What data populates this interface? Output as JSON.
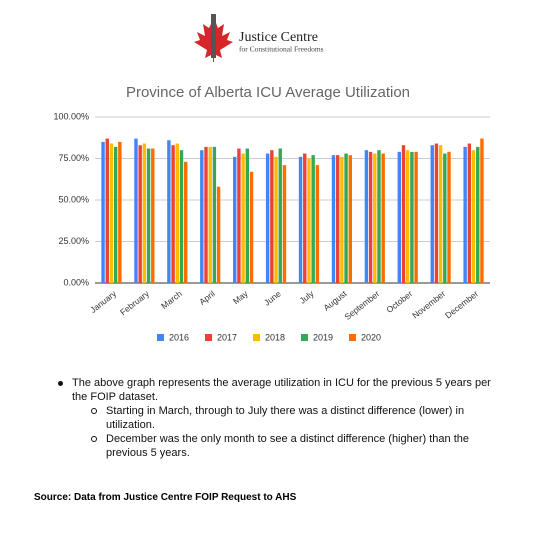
{
  "header": {
    "logo_name": "Justice Centre",
    "logo_subtitle": "for Constitutional Freedoms"
  },
  "chart_data": {
    "type": "bar",
    "title": "Province of Alberta ICU Average Utilization",
    "categories": [
      "January",
      "February",
      "March",
      "April",
      "May",
      "June",
      "July",
      "August",
      "September",
      "October",
      "November",
      "December"
    ],
    "series": [
      {
        "name": "2016",
        "color": "#4285f4",
        "values": [
          85,
          87,
          86,
          80,
          76,
          78,
          76,
          77,
          80,
          79,
          83,
          82
        ]
      },
      {
        "name": "2017",
        "color": "#ea4335",
        "values": [
          87,
          83,
          83,
          82,
          81,
          80,
          78,
          77,
          79,
          83,
          84,
          84
        ]
      },
      {
        "name": "2018",
        "color": "#fbbc04",
        "values": [
          84,
          84,
          84,
          82,
          78,
          76,
          75,
          76,
          78,
          80,
          83,
          80
        ]
      },
      {
        "name": "2019",
        "color": "#34a853",
        "values": [
          82,
          81,
          80,
          82,
          81,
          81,
          77,
          78,
          80,
          79,
          78,
          82
        ]
      },
      {
        "name": "2020",
        "color": "#ff6d01",
        "values": [
          85,
          81,
          73,
          58,
          67,
          71,
          71,
          77,
          78,
          79,
          79,
          87
        ]
      }
    ],
    "ylim": [
      0,
      100
    ],
    "yticks": [
      {
        "value": 0,
        "label": "0.00%"
      },
      {
        "value": 25,
        "label": "25.00%"
      },
      {
        "value": 50,
        "label": "50.00%"
      },
      {
        "value": 75,
        "label": "75.00%"
      },
      {
        "value": 100,
        "label": "100.00%"
      }
    ],
    "grid": true,
    "legend": "bottom"
  },
  "notes": [
    {
      "text": "The above graph represents the average utilization in ICU for the previous 5 years per the FOIP dataset.",
      "subitems": [
        "Starting in March, through to July there was a distinct difference (lower) in utilization.",
        "December was the only month to see a distinct difference (higher) than the previous 5 years."
      ]
    }
  ],
  "source": "Source: Data from Justice Centre FOIP Request to AHS"
}
